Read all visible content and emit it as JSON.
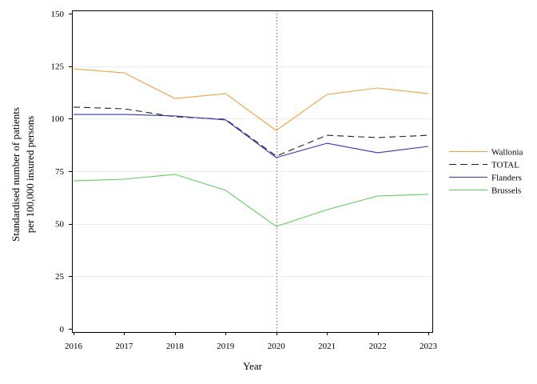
{
  "chart_data": {
    "type": "line",
    "x": [
      2016,
      2017,
      2018,
      2019,
      2020,
      2021,
      2022,
      2023
    ],
    "xlabel": "Year",
    "ylabel": [
      "Standardised number of patients",
      "per 100,000 insured persons"
    ],
    "ylim": [
      0,
      150
    ],
    "y_ticks": [
      0,
      25,
      50,
      75,
      100,
      125,
      150
    ],
    "grid": true,
    "legend_position": "right",
    "reference_lines": [
      {
        "axis": "x",
        "value": 2020,
        "style": "dotted",
        "color": "#cc4f6b"
      }
    ],
    "series": [
      {
        "name": "Wallonia",
        "color": "#f2a43a",
        "style": "solid",
        "values": [
          123.7,
          121.8,
          109.6,
          111.9,
          94.4,
          111.5,
          114.6,
          111.9
        ]
      },
      {
        "name": "TOTAL",
        "color": "#222222",
        "style": "dashed",
        "values": [
          105.5,
          104.7,
          100.9,
          99.7,
          82.2,
          92.1,
          91.0,
          92.1
        ]
      },
      {
        "name": "Flanders",
        "color": "#3434d2",
        "style": "solid",
        "values": [
          102.0,
          102.0,
          101.3,
          99.4,
          81.5,
          88.3,
          83.8,
          86.8
        ]
      },
      {
        "name": "Brussels",
        "color": "#5fcf5f",
        "style": "solid",
        "values": [
          70.4,
          71.2,
          73.5,
          65.9,
          48.7,
          56.7,
          63.2,
          64.0
        ]
      }
    ]
  }
}
